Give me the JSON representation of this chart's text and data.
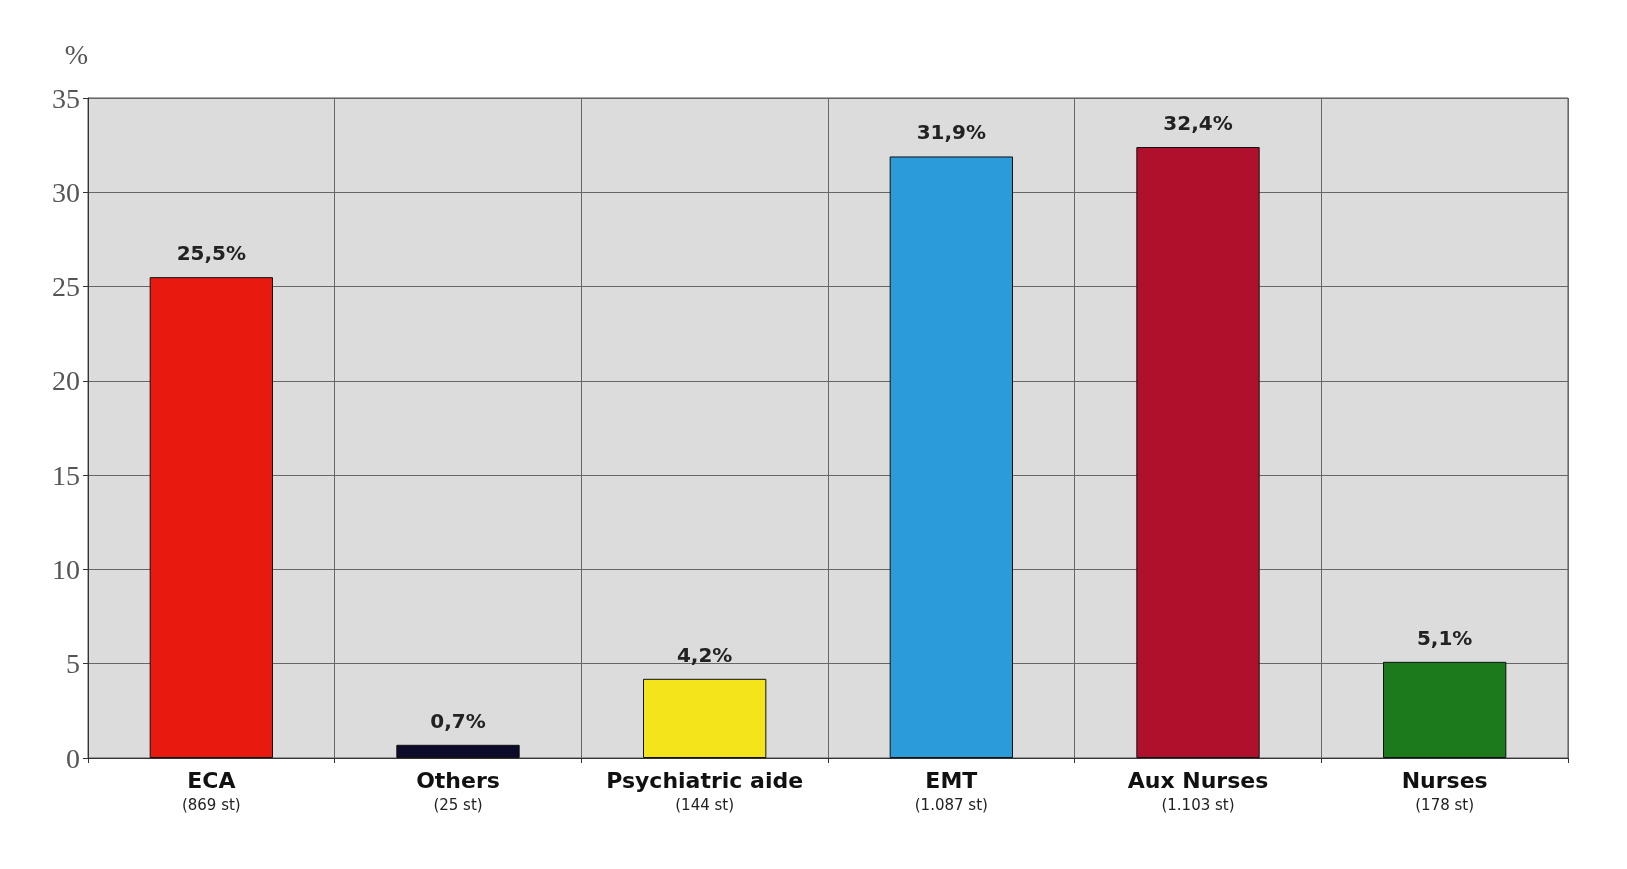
{
  "chart_data": {
    "type": "bar",
    "ylabel": "%",
    "categories": [
      "ECA\n(869 st)",
      "Others\n(25 st)",
      "Psychiatric aide\n(144 st)",
      "EMT\n(1.087 st)",
      "Aux Nurses\n(1.103 st)",
      "Nurses\n(178 st)"
    ],
    "values": [
      25.5,
      0.7,
      4.2,
      31.9,
      32.4,
      5.1
    ],
    "value_labels": [
      "25,5%",
      "0,7%",
      "4,2%",
      "31,9%",
      "32,4%",
      "5,1%"
    ],
    "colors": [
      "#e8190f",
      "#0c0c2a",
      "#f4e41c",
      "#2b9bd9",
      "#b0102c",
      "#1c7a1c"
    ],
    "ylim": [
      0,
      35
    ],
    "yticks": [
      0,
      5,
      10,
      15,
      20,
      25,
      30,
      35
    ],
    "grid": true
  }
}
